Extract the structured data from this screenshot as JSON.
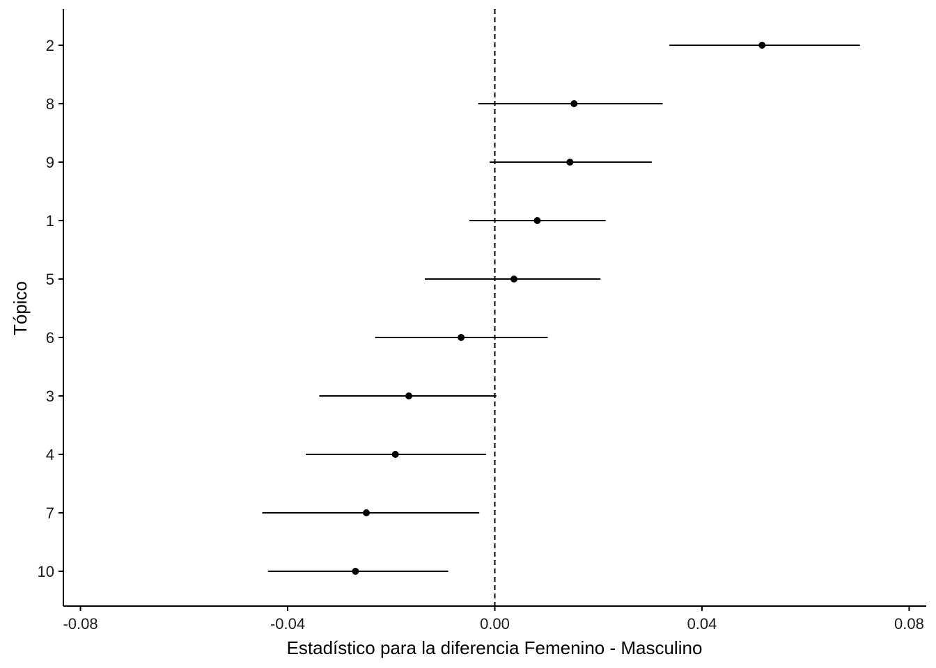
{
  "chart_data": {
    "type": "scatter",
    "title": "",
    "xlabel": "Estadístico para la diferencia Femenino - Masculino",
    "ylabel": "Tópico",
    "xlim": [
      -0.0833,
      0.0833
    ],
    "xticks": [
      "-0.08",
      "-0.04",
      "0.00",
      "0.04",
      "0.08"
    ],
    "xtick_values": [
      -0.08,
      -0.04,
      0.0,
      0.04,
      0.08
    ],
    "categories": [
      "2",
      "8",
      "9",
      "1",
      "5",
      "6",
      "3",
      "4",
      "7",
      "10"
    ],
    "series": [
      {
        "points": [
          {
            "topic": "2",
            "estimate": 0.0516,
            "lower": 0.0337,
            "upper": 0.0705
          },
          {
            "topic": "8",
            "estimate": 0.0153,
            "lower": -0.0032,
            "upper": 0.0324
          },
          {
            "topic": "9",
            "estimate": 0.0145,
            "lower": -0.001,
            "upper": 0.0303
          },
          {
            "topic": "1",
            "estimate": 0.0082,
            "lower": -0.0049,
            "upper": 0.0214
          },
          {
            "topic": "5",
            "estimate": 0.0037,
            "lower": -0.0135,
            "upper": 0.0204
          },
          {
            "topic": "6",
            "estimate": -0.0065,
            "lower": -0.0231,
            "upper": 0.0102
          },
          {
            "topic": "3",
            "estimate": -0.0166,
            "lower": -0.0339,
            "upper": 0.0003
          },
          {
            "topic": "4",
            "estimate": -0.0192,
            "lower": -0.0365,
            "upper": -0.0017
          },
          {
            "topic": "7",
            "estimate": -0.0248,
            "lower": -0.0449,
            "upper": -0.003
          },
          {
            "topic": "10",
            "estimate": -0.0269,
            "lower": -0.0438,
            "upper": -0.009
          }
        ]
      }
    ],
    "reference_line": {
      "x": 0.0,
      "style": "dashed"
    },
    "grid": false,
    "legend": "none",
    "colors": {
      "marks": "#000000",
      "axis": "#000000"
    }
  }
}
